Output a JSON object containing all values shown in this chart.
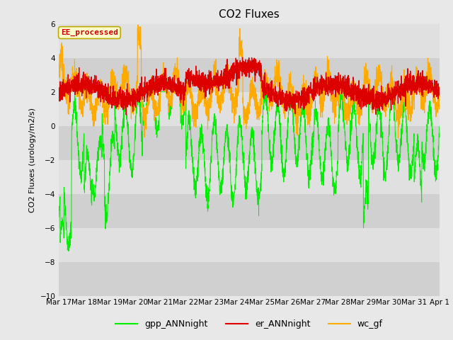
{
  "title": "CO2 Fluxes",
  "ylabel": "CO2 Fluxes (urology/m2/s)",
  "ylim": [
    -10,
    6
  ],
  "yticks": [
    -10,
    -8,
    -6,
    -4,
    -2,
    0,
    2,
    4,
    6
  ],
  "n_points": 3000,
  "days": 15,
  "fig_bg_color": "#e8e8e8",
  "plot_bg_color": "#d8d8d8",
  "band_colors": [
    "#d0d0d0",
    "#e0e0e0"
  ],
  "grid_color": "#ffffff",
  "line_colors": {
    "gpp": "#00ee00",
    "er": "#dd0000",
    "wc": "#ffaa00"
  },
  "legend_labels": [
    "gpp_ANNnight",
    "er_ANNnight",
    "wc_gf"
  ],
  "annotation_text": "EE_processed",
  "annotation_color": "#cc0000",
  "annotation_bg": "#ffffcc",
  "annotation_border": "#bbaa00",
  "xtick_labels": [
    "Mar 17",
    "Mar 18",
    "Mar 19",
    "Mar 20",
    "Mar 21",
    "Mar 22",
    "Mar 23",
    "Mar 24",
    "Mar 25",
    "Mar 26",
    "Mar 27",
    "Mar 28",
    "Mar 29",
    "Mar 30",
    "Mar 31",
    "Apr 1"
  ],
  "title_fontsize": 11,
  "label_fontsize": 8,
  "tick_fontsize": 7.5
}
